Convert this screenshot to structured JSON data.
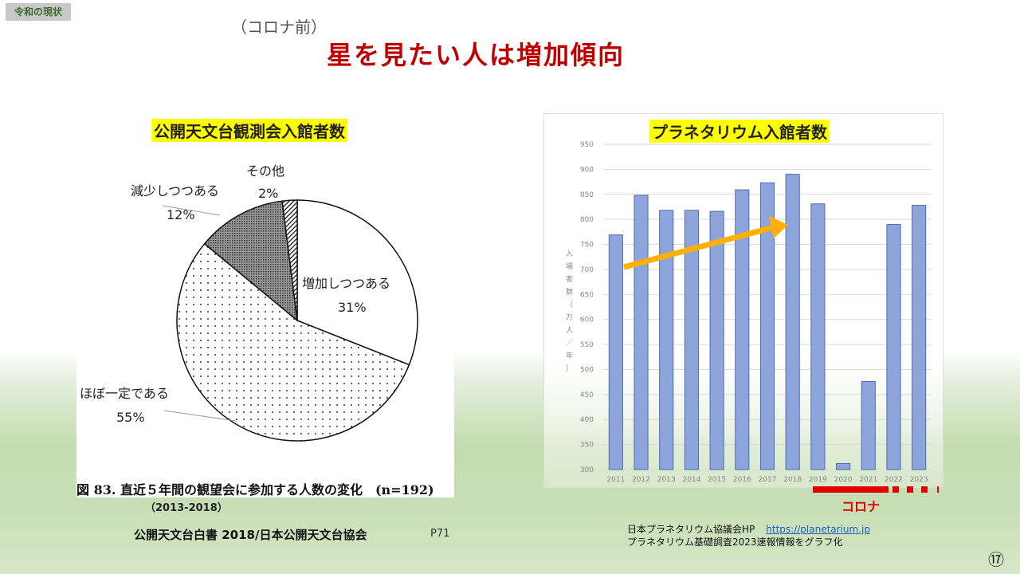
{
  "tag": "令和の現状",
  "subtitle": "（コロナ前）",
  "title": "星を見たい人は増加傾向",
  "page_number": "⑰",
  "chart_data": [
    {
      "type": "pie",
      "title": "公開天文台観測会入館者数",
      "caption": "図 83. 直近５年間の観望会に参加する人数の変化　(n=192)",
      "period": "（2013-2018）",
      "slices": [
        {
          "name": "増加しつつある",
          "value": 31,
          "label": "31%",
          "fill": "white"
        },
        {
          "name": "ほぼ一定である",
          "value": 55,
          "label": "55%",
          "fill": "dots"
        },
        {
          "name": "減少しつつある",
          "value": 12,
          "label": "12%",
          "fill": "dark-dots"
        },
        {
          "name": "その他",
          "value": 2,
          "label": "2%",
          "fill": "hatch"
        }
      ],
      "source": "公開天文台白書 2018/日本公開天文台協会",
      "source_page": "P71"
    },
    {
      "type": "bar",
      "title": "プラネタリウム入館者数",
      "ylabel": "入場者数（万人／年）",
      "categories": [
        "2011",
        "2012",
        "2013",
        "2014",
        "2015",
        "2016",
        "2017",
        "2018",
        "2019",
        "2020",
        "2021",
        "2022",
        "2023"
      ],
      "values": [
        769,
        848,
        818,
        818,
        816,
        859,
        873,
        890,
        831,
        312,
        476,
        790,
        828
      ],
      "ylim": [
        300,
        950
      ],
      "yticks": [
        300,
        350,
        400,
        450,
        500,
        550,
        600,
        650,
        700,
        750,
        800,
        850,
        900,
        950
      ],
      "grid": true,
      "bar_color": "#8ea5dc",
      "annotations": {
        "trend_arrow": "2011→2018",
        "trend_color": "#ffb000",
        "period_label": "コロナ",
        "period_color": "#e00000"
      }
    }
  ],
  "footer": {
    "org": "日本プラネタリウム協議会HP",
    "url": "https://planetarium.jp",
    "note": "プラネタリウム基礎調査2023速報情報をグラフ化"
  }
}
